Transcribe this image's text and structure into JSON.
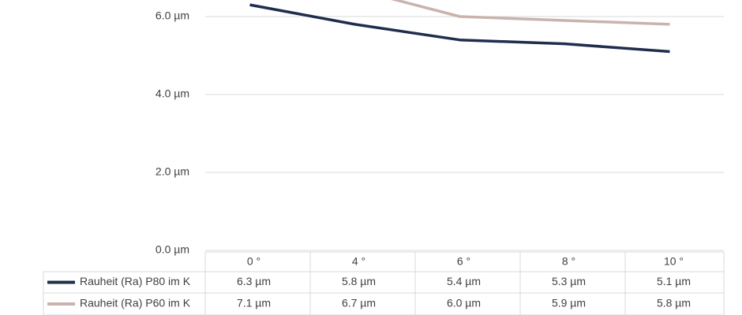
{
  "chart_data": {
    "type": "line",
    "categories": [
      "0 °",
      "4 °",
      "6 °",
      "8 °",
      "10 °"
    ],
    "series": [
      {
        "name": "Rauheit (Ra) P80 im K",
        "color": "#1f2d4e",
        "values": [
          6.3,
          5.8,
          5.4,
          5.3,
          5.1
        ],
        "value_labels": [
          "6.3 µm",
          "5.8 µm",
          "5.4 µm",
          "5.3 µm",
          "5.1 µm"
        ]
      },
      {
        "name": "Rauheit (Ra) P60 im K",
        "color": "#c9b3ad",
        "values": [
          7.1,
          6.7,
          6.0,
          5.9,
          5.8
        ],
        "value_labels": [
          "7.1 µm",
          "6.7 µm",
          "6.0 µm",
          "5.9 µm",
          "5.8 µm"
        ]
      }
    ],
    "ylim": [
      0,
      8
    ],
    "yticks": [
      {
        "value": 0,
        "label": "0.0 µm"
      },
      {
        "value": 2,
        "label": "2.0 µm"
      },
      {
        "value": 4,
        "label": "4.0 µm"
      },
      {
        "value": 6,
        "label": "6.0 µm"
      }
    ],
    "grid": true
  }
}
